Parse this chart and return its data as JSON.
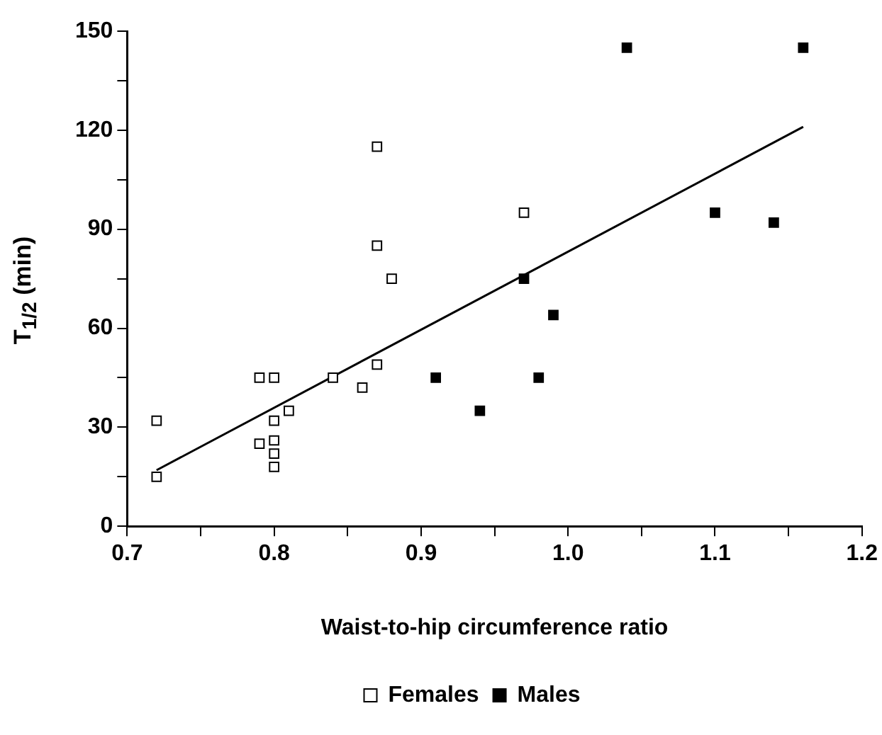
{
  "chart_data": {
    "type": "scatter",
    "xlabel": "Waist-to-hip circumference ratio",
    "ylabel": "T$_{1/2}$ (min)",
    "xlim": [
      0.7,
      1.2
    ],
    "xticks": [
      {
        "value": 0.7,
        "label": "0.7"
      },
      {
        "value": 0.75,
        "label": null
      },
      {
        "value": 0.8,
        "label": "0.8"
      },
      {
        "value": 0.85,
        "label": null
      },
      {
        "value": 0.9,
        "label": "0.9"
      },
      {
        "value": 0.95,
        "label": null
      },
      {
        "value": 1.0,
        "label": "1.0"
      },
      {
        "value": 1.05,
        "label": null
      },
      {
        "value": 1.1,
        "label": "1.1"
      },
      {
        "value": 1.15,
        "label": null
      },
      {
        "value": 1.2,
        "label": "1.2"
      }
    ],
    "ylim": [
      0,
      150
    ],
    "yticks": [
      0,
      {
        "value": 15,
        "label": null
      },
      30,
      {
        "value": 45,
        "label": null
      },
      60,
      {
        "value": 75,
        "label": null
      },
      90,
      {
        "value": 105,
        "label": null
      },
      120,
      {
        "value": 135,
        "label": null
      },
      150
    ],
    "grid": false,
    "legend": "bottom",
    "marker": "square",
    "series": [
      {
        "name": "Females",
        "color": "#ffffff",
        "x": [
          0.72,
          0.72,
          0.79,
          0.8,
          0.79,
          0.8,
          0.8,
          0.8,
          0.8,
          0.81,
          0.84,
          0.86,
          0.87,
          0.87,
          0.87,
          0.88,
          0.97
        ],
        "values": [
          32,
          15,
          45,
          45,
          25,
          32,
          26,
          22,
          18,
          35,
          45,
          42,
          49,
          115,
          85,
          75,
          95
        ]
      },
      {
        "name": "Males",
        "color": "#000000",
        "x": [
          0.91,
          0.94,
          0.97,
          0.98,
          0.99,
          1.04,
          1.1,
          1.14,
          1.16
        ],
        "values": [
          45,
          35,
          75,
          45,
          64,
          145,
          95,
          92,
          145
        ]
      },
      {
        "type": "line",
        "color": "#000000",
        "marker": "none",
        "x": [
          0.72,
          1.16
        ],
        "values": [
          17,
          121
        ]
      }
    ]
  }
}
